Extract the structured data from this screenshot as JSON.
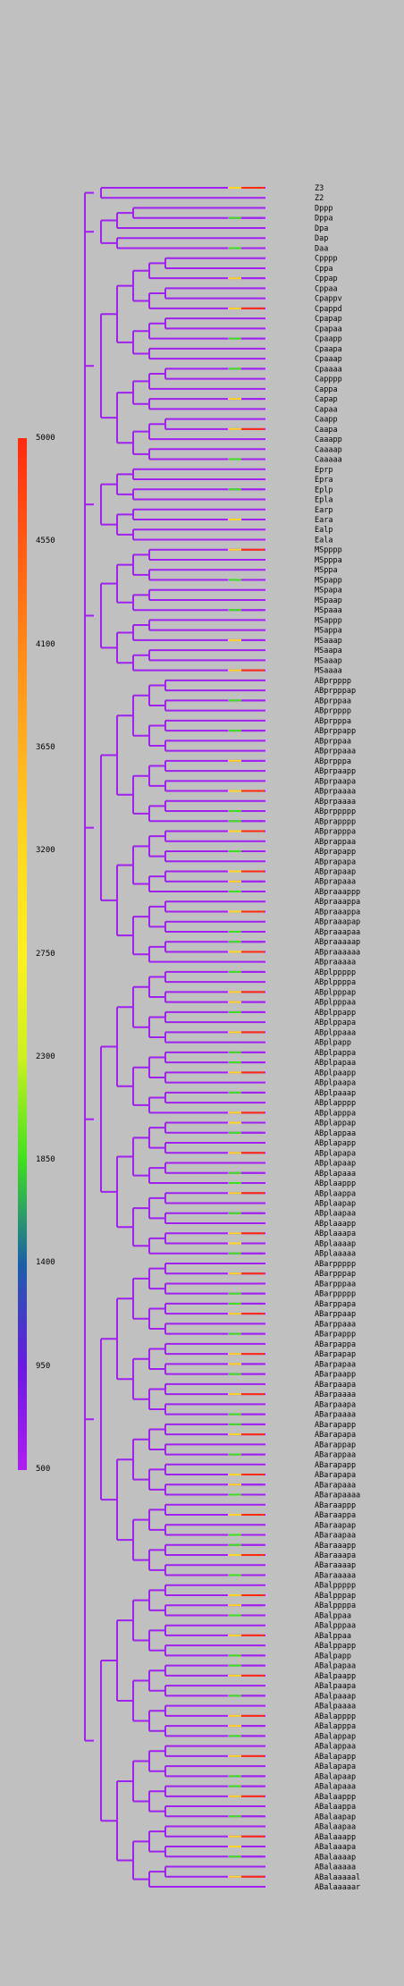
{
  "legend": {
    "ticks": [
      "5000",
      "4550",
      "4100",
      "3650",
      "3200",
      "2750",
      "2300",
      "1850",
      "1400",
      "950",
      "500"
    ],
    "colors": [
      "#ff2a10",
      "#ff5a14",
      "#ff8818",
      "#ffb020",
      "#ffd820",
      "#fff020",
      "#ccf020",
      "#40e020",
      "#1a60a8",
      "#6a1ae0",
      "#b01ef0"
    ]
  },
  "tree": {
    "line_color": "#a020f0",
    "leaves": [
      "Z3",
      "Z2",
      "Dppp",
      "Dppa",
      "Dpa",
      "Dap",
      "Daa",
      "Cpppp",
      "Cppa",
      "Cppap",
      "Cppaa",
      "Cpappv",
      "Cpappd",
      "Cpapap",
      "Cpapaa",
      "Cpaapp",
      "Cpaapa",
      "Cpaaap",
      "Cpaaaa",
      "Capppp",
      "Cappa",
      "Capap",
      "Capaa",
      "Caapp",
      "Caapa",
      "Caaapp",
      "Caaaap",
      "Caaaaa",
      "Eprp",
      "Epra",
      "Eplp",
      "Epla",
      "Earp",
      "Eara",
      "Ealp",
      "Eala",
      "MSpppp",
      "MSpppa",
      "MSppa",
      "MSpapp",
      "MSpapa",
      "MSpaap",
      "MSpaaa",
      "MSappp",
      "MSappa",
      "MSaaap",
      "MSaapa",
      "MSaaap",
      "MSaaaa",
      "ABprpppp",
      "ABprpppap",
      "ABprppaa",
      "ABprpppp",
      "ABprpppa",
      "ABprppapp",
      "ABprppaa",
      "ABprppaaa",
      "ABprpppa",
      "ABprpaapp",
      "ABprpaapa",
      "ABprpaaaa",
      "ABprpaaaa",
      "ABprppppp",
      "ABprapppp",
      "ABprapppa",
      "ABprappaa",
      "ABprapapp",
      "ABprapapa",
      "ABprapaap",
      "ABprapaaa",
      "ABpraaappp",
      "ABpraaappa",
      "ABpraaappa",
      "ABpraaapap",
      "ABpraaapaa",
      "ABpraaaaap",
      "ABpraaaaaa",
      "ABpraaaaa",
      "ABplppppp",
      "ABplppppa",
      "ABplpppap",
      "ABplpppaa",
      "ABplppapp",
      "ABplppapa",
      "ABplppaaa",
      "ABplpapp",
      "ABplpappa",
      "ABplpapaa",
      "ABplpaapp",
      "ABplpaapa",
      "ABplpaaap",
      "ABplapppp",
      "ABplapppa",
      "ABplappap",
      "ABplappaa",
      "ABplapapp",
      "ABplapapa",
      "ABplapaap",
      "ABplapaaa",
      "ABplaappp",
      "ABplaappa",
      "ABplaapap",
      "ABplaapaa",
      "ABplaaapp",
      "ABplaaapa",
      "ABplaaaap",
      "ABplaaaaa",
      "ABarppppp",
      "ABarpppap",
      "ABarpppaa",
      "ABarppppp",
      "ABarppapa",
      "ABarppaap",
      "ABarppaaa",
      "ABarpappp",
      "ABarpappa",
      "ABarpapap",
      "ABarpapaa",
      "ABarpaapp",
      "ABarpaapa",
      "ABarpaaaa",
      "ABarpaapa",
      "ABarpaaaa",
      "ABarapapp",
      "ABarapapa",
      "ABarappap",
      "ABarappaa",
      "ABarapapp",
      "ABarapapa",
      "ABarapaaa",
      "ABarapaaaa",
      "ABaraappp",
      "ABaraappa",
      "ABaraapap",
      "ABaraapaa",
      "ABaraaapp",
      "ABaraaapa",
      "ABaraaaap",
      "ABaraaaaa",
      "ABalppppp",
      "ABalpppap",
      "ABalppppa",
      "ABalppaa",
      "ABalpppaa",
      "ABalppaa",
      "ABalppapp",
      "ABalpapp",
      "ABalpapaa",
      "ABalpaapp",
      "ABalpaapa",
      "ABalpaaap",
      "ABalpaaaa",
      "ABalapppp",
      "ABalapppa",
      "ABalappap",
      "ABalappaa",
      "ABalapapp",
      "ABalapapa",
      "ABalapaap",
      "ABalapaaa",
      "ABalaappp",
      "ABalaappa",
      "ABalaapap",
      "ABalaapaa",
      "ABalaaapp",
      "ABalaaapa",
      "ABalaaaap",
      "ABalaaaaa",
      "ABalaaaaal",
      "ABalaaaaar"
    ]
  }
}
